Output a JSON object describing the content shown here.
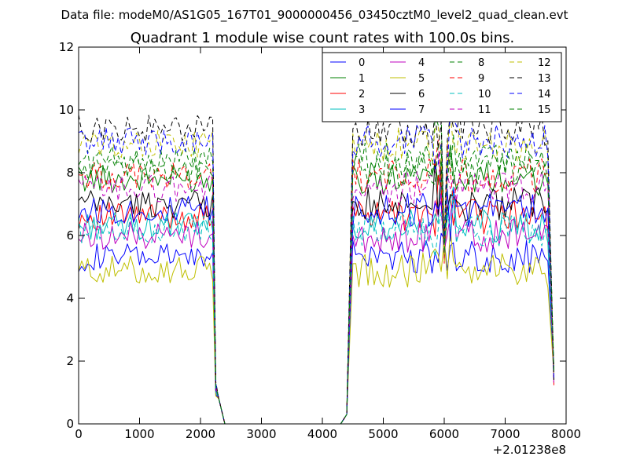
{
  "chart_data": {
    "type": "line",
    "suptitle": "Data file: modeM0/AS1G05_167T01_9000000456_03450cztM0_level2_quad_clean.evt",
    "title": "Quadrant 1 module wise count rates with 100.0s bins.",
    "xlabel": "",
    "ylabel": "",
    "x_offset_label": "+2.01238e8",
    "xlim": [
      0,
      8000
    ],
    "ylim": [
      0,
      12
    ],
    "xticks": [
      0,
      1000,
      2000,
      3000,
      4000,
      5000,
      6000,
      7000,
      8000
    ],
    "yticks": [
      0,
      2,
      4,
      6,
      8,
      10,
      12
    ],
    "grid": false,
    "legend_position": "top-right",
    "legend_columns": 4,
    "series": [
      {
        "name": "0",
        "color": "#0000ff",
        "dash": "solid",
        "level": 5.3
      },
      {
        "name": "1",
        "color": "#008000",
        "dash": "solid",
        "level": 7.8
      },
      {
        "name": "2",
        "color": "#ff0000",
        "dash": "solid",
        "level": 6.6
      },
      {
        "name": "3",
        "color": "#00bfbf",
        "dash": "solid",
        "level": 6.3
      },
      {
        "name": "4",
        "color": "#bf00bf",
        "dash": "solid",
        "level": 6.0
      },
      {
        "name": "5",
        "color": "#bfbf00",
        "dash": "solid",
        "level": 4.9
      },
      {
        "name": "6",
        "color": "#000000",
        "dash": "solid",
        "level": 7.0
      },
      {
        "name": "7",
        "color": "#0000ff",
        "dash": "solid",
        "level": 6.8
      },
      {
        "name": "8",
        "color": "#008000",
        "dash": "dashed",
        "level": 8.4
      },
      {
        "name": "9",
        "color": "#ff0000",
        "dash": "dashed",
        "level": 7.9
      },
      {
        "name": "10",
        "color": "#00bfbf",
        "dash": "dashed",
        "level": 6.2
      },
      {
        "name": "11",
        "color": "#bf00bf",
        "dash": "dashed",
        "level": 7.5
      },
      {
        "name": "12",
        "color": "#bfbf00",
        "dash": "dashed",
        "level": 8.9
      },
      {
        "name": "13",
        "color": "#000000",
        "dash": "dashed",
        "level": 9.4
      },
      {
        "name": "14",
        "color": "#0000ff",
        "dash": "dashed",
        "level": 9.0
      },
      {
        "name": "15",
        "color": "#008000",
        "dash": "dashed",
        "level": 8.1
      }
    ],
    "time_profile": {
      "bin_width_s": 100,
      "active_segments": [
        [
          0,
          2200
        ],
        [
          4500,
          7700
        ]
      ],
      "transition_points": [
        [
          2250,
          1.0
        ],
        [
          2300,
          0.8
        ],
        [
          2400,
          0
        ],
        [
          4300,
          0
        ],
        [
          4400,
          0.3
        ],
        [
          7800,
          1.5
        ]
      ],
      "dip_at_6000": 5.5
    }
  }
}
